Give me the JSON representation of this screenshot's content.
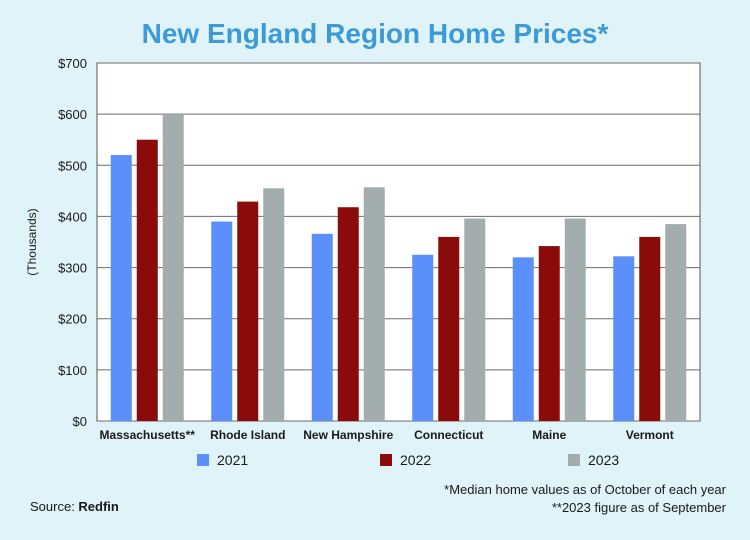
{
  "title": "New England Region Home Prices*",
  "footnotes": [
    "*Median home values as of October of each year",
    "**2023 figure as of September"
  ],
  "source": {
    "label": "Source: ",
    "value": "Redfin"
  },
  "chart_data": {
    "type": "bar",
    "title": "New England Region Home Prices*",
    "ylabel": "(Thousands)",
    "xlabel": "",
    "ylim": [
      0,
      700
    ],
    "yticks": [
      0,
      100,
      200,
      300,
      400,
      500,
      600,
      700
    ],
    "ytick_labels": [
      "$0",
      "$100",
      "$200",
      "$300",
      "$400",
      "$500",
      "$600",
      "$700"
    ],
    "grid": true,
    "legend": "bottom",
    "categories": [
      "Massachusetts**",
      "Rhode Island",
      "New Hampshire",
      "Connecticut",
      "Maine",
      "Vermont"
    ],
    "series": [
      {
        "name": "2021",
        "color": "#5b8ff9",
        "values": [
          520,
          390,
          366,
          325,
          320,
          322
        ]
      },
      {
        "name": "2022",
        "color": "#8b0a0a",
        "values": [
          550,
          429,
          418,
          360,
          342,
          360
        ]
      },
      {
        "name": "2023",
        "color": "#a3adad",
        "values": [
          600,
          455,
          457,
          396,
          396,
          385
        ]
      }
    ]
  }
}
